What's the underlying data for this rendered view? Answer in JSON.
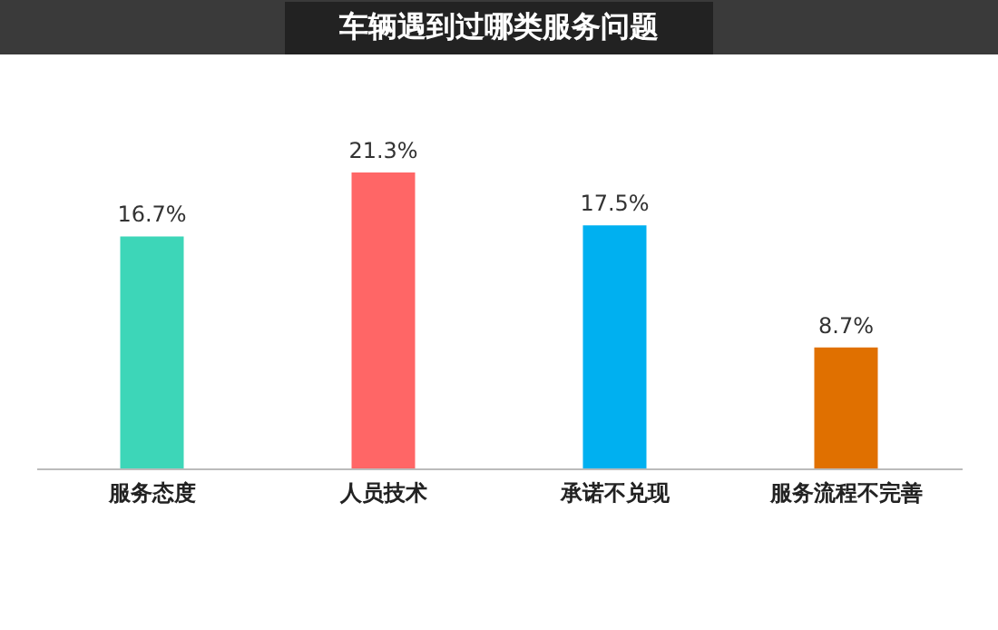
{
  "chart_data": {
    "type": "bar",
    "title": "车辆遇到过哪类服务问题",
    "categories": [
      "服务态度",
      "人员技术",
      "承诺不兑现",
      "服务流程不完善"
    ],
    "values": [
      16.7,
      21.3,
      17.5,
      8.7
    ],
    "colors": [
      "#3dd6b8",
      "#ff6666",
      "#00b0f0",
      "#e07000"
    ],
    "value_labels": [
      "16.7%",
      "21.3%",
      "17.5%",
      "8.7%"
    ],
    "grid": false
  }
}
